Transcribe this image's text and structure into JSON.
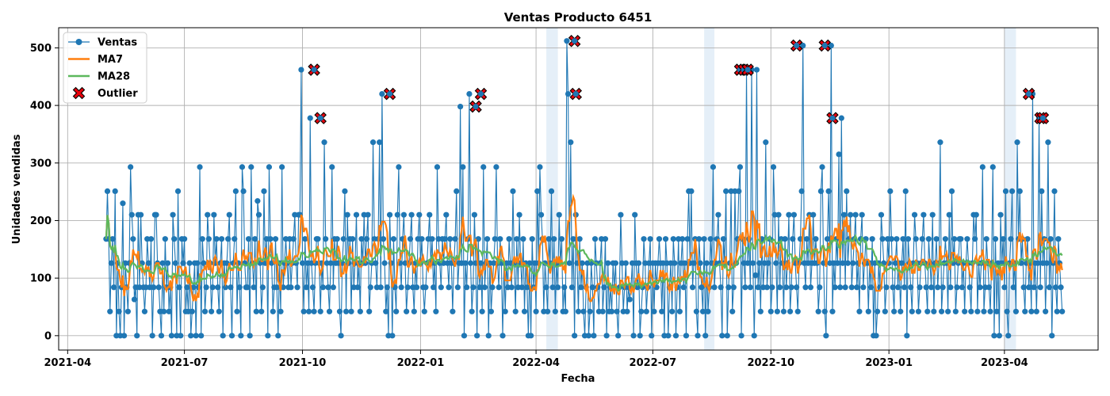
{
  "chart_data": {
    "type": "line",
    "title": "Ventas Producto 6451",
    "xlabel": "Fecha",
    "ylabel": "Unidades vendidas",
    "ylim": [
      -25,
      535
    ],
    "xlim": [
      "2021-03-25",
      "2023-06-13"
    ],
    "grid": true,
    "legend_position": "top-left",
    "x_ticks": [
      {
        "date": "2021-04-01",
        "label": "2021-04"
      },
      {
        "date": "2021-07-01",
        "label": "2021-07"
      },
      {
        "date": "2021-10-01",
        "label": "2021-10"
      },
      {
        "date": "2022-01-01",
        "label": "2022-01"
      },
      {
        "date": "2022-04-01",
        "label": "2022-04"
      },
      {
        "date": "2022-07-01",
        "label": "2022-07"
      },
      {
        "date": "2022-10-01",
        "label": "2022-10"
      },
      {
        "date": "2023-01-01",
        "label": "2023-01"
      },
      {
        "date": "2023-04-01",
        "label": "2023-04"
      }
    ],
    "y_ticks": [
      0,
      100,
      200,
      300,
      400,
      500
    ],
    "start_date": "2021-05-01",
    "highlight_periods": [
      [
        "2022-04-09",
        "2022-04-18"
      ],
      [
        "2022-08-10",
        "2022-08-18"
      ],
      [
        "2023-04-01",
        "2023-04-10"
      ]
    ],
    "legend": [
      {
        "name": "Ventas",
        "color": "#1f77b4",
        "style": "line-marker"
      },
      {
        "name": "MA7",
        "color": "#ff7f0e",
        "style": "line"
      },
      {
        "name": "MA28",
        "color": "#5cb85c",
        "style": "line"
      },
      {
        "name": "Outlier",
        "color": "#e8000b",
        "style": "x-marker"
      }
    ],
    "outliers": [
      {
        "date": "2021-10-10",
        "value": 462
      },
      {
        "date": "2021-10-15",
        "value": 378
      },
      {
        "date": "2021-12-08",
        "value": 420
      },
      {
        "date": "2022-02-13",
        "value": 398
      },
      {
        "date": "2022-02-17",
        "value": 420
      },
      {
        "date": "2022-05-01",
        "value": 512
      },
      {
        "date": "2022-05-02",
        "value": 420
      },
      {
        "date": "2022-09-07",
        "value": 462
      },
      {
        "date": "2022-09-10",
        "value": 462
      },
      {
        "date": "2022-09-13",
        "value": 462
      },
      {
        "date": "2022-10-21",
        "value": 504
      },
      {
        "date": "2022-11-12",
        "value": 504
      },
      {
        "date": "2022-11-18",
        "value": 378
      },
      {
        "date": "2023-04-20",
        "value": 420
      },
      {
        "date": "2023-04-29",
        "value": 378
      },
      {
        "date": "2023-05-01",
        "value": 378
      }
    ],
    "anchors": [
      [
        "2021-05-01",
        168
      ],
      [
        "2021-05-12",
        130
      ],
      [
        "2021-05-25",
        95
      ],
      [
        "2021-06-05",
        125
      ],
      [
        "2021-06-20",
        115
      ],
      [
        "2021-07-01",
        95
      ],
      [
        "2021-07-20",
        85
      ],
      [
        "2021-08-10",
        110
      ],
      [
        "2021-08-28",
        135
      ],
      [
        "2021-09-15",
        115
      ],
      [
        "2021-10-10",
        150
      ],
      [
        "2021-10-25",
        130
      ],
      [
        "2021-11-15",
        115
      ],
      [
        "2021-12-08",
        175
      ],
      [
        "2021-12-22",
        90
      ],
      [
        "2022-01-10",
        125
      ],
      [
        "2022-02-05",
        125
      ],
      [
        "2022-02-20",
        165
      ],
      [
        "2022-03-15",
        140
      ],
      [
        "2022-04-05",
        120
      ],
      [
        "2022-04-20",
        110
      ],
      [
        "2022-05-05",
        165
      ],
      [
        "2022-05-25",
        100
      ],
      [
        "2022-06-15",
        75
      ],
      [
        "2022-07-05",
        90
      ],
      [
        "2022-07-25",
        85
      ],
      [
        "2022-08-10",
        110
      ],
      [
        "2022-08-25",
        120
      ],
      [
        "2022-09-10",
        160
      ],
      [
        "2022-10-01",
        120
      ],
      [
        "2022-10-22",
        165
      ],
      [
        "2022-11-05",
        130
      ],
      [
        "2022-11-20",
        175
      ],
      [
        "2022-12-10",
        110
      ],
      [
        "2022-12-28",
        120
      ],
      [
        "2023-01-20",
        125
      ],
      [
        "2023-02-10",
        140
      ],
      [
        "2023-03-01",
        120
      ],
      [
        "2023-03-20",
        100
      ],
      [
        "2023-04-05",
        125
      ],
      [
        "2023-04-25",
        145
      ],
      [
        "2023-05-05",
        190
      ],
      [
        "2023-05-18",
        125
      ]
    ],
    "series": [
      {
        "name": "Ventas",
        "type": "line-marker",
        "color": "#1f77b4",
        "values": [
          168,
          251,
          168,
          42,
          126,
          168,
          84,
          251,
          0,
          126,
          42,
          0,
          84,
          230,
          0,
          126,
          84,
          42,
          126,
          293,
          210,
          168,
          63,
          84,
          0,
          210,
          84,
          210,
          126,
          84,
          42,
          84,
          168,
          126,
          84,
          168,
          0,
          84,
          210,
          210,
          126,
          84,
          42,
          0,
          126,
          42,
          168,
          84,
          126,
          42,
          84,
          0,
          210,
          168,
          126,
          0,
          251,
          84,
          0,
          168,
          126,
          168,
          42,
          84,
          42,
          126,
          0,
          42,
          84,
          126,
          0,
          126,
          84,
          293,
          0,
          168,
          126,
          42,
          84,
          210,
          168,
          126,
          42,
          84,
          210,
          126,
          168,
          84,
          42,
          126,
          168,
          0,
          126,
          84,
          126,
          168,
          210,
          84,
          0,
          126,
          168,
          251,
          42,
          126,
          84,
          0,
          293,
          251,
          126,
          84,
          84,
          168,
          0,
          293,
          126,
          84,
          168,
          42,
          234,
          210,
          126,
          42,
          84,
          251,
          126,
          168,
          0,
          293,
          168,
          126,
          42,
          84,
          168,
          84,
          0,
          126,
          42,
          293,
          84,
          126,
          168,
          126,
          84,
          168,
          84,
          126,
          168,
          210,
          126,
          84,
          210,
          210,
          462,
          126,
          42,
          168,
          84,
          126,
          42,
          378,
          126,
          84,
          42,
          126,
          168,
          168,
          126,
          42,
          126,
          84,
          336,
          168,
          126,
          84,
          42,
          126,
          293,
          84,
          168,
          126,
          168,
          126,
          42,
          0,
          126,
          168,
          251,
          42,
          210,
          126,
          168,
          42,
          168,
          84,
          126,
          210,
          84,
          126,
          42,
          168,
          126,
          210,
          126,
          168,
          210,
          42,
          84,
          126,
          336,
          168,
          126,
          84,
          168,
          336,
          84,
          420,
          168,
          126,
          42,
          84,
          0,
          210,
          126,
          0,
          168,
          84,
          42,
          210,
          293,
          126,
          84,
          168,
          210,
          126,
          42,
          84,
          126,
          168,
          210,
          84,
          42,
          126,
          84,
          168,
          210,
          126,
          168,
          84,
          42,
          84,
          126,
          168,
          210,
          126,
          168,
          84,
          126,
          42,
          293,
          168,
          126,
          84,
          168,
          126,
          168,
          210,
          126,
          84,
          168,
          126,
          42,
          126,
          168,
          251,
          84,
          126,
          398,
          126,
          293,
          0,
          126,
          84,
          168,
          420,
          126,
          42,
          84,
          210,
          126,
          0,
          168,
          84,
          126,
          42,
          293,
          84,
          126,
          168,
          0,
          126,
          42,
          84,
          126,
          168,
          293,
          126,
          84,
          168,
          126,
          0,
          126,
          42,
          126,
          84,
          168,
          126,
          84,
          251,
          126,
          42,
          168,
          84,
          210,
          126,
          84,
          168,
          42,
          126,
          84,
          0,
          126,
          0,
          168,
          84,
          126,
          42,
          251,
          126,
          293,
          210,
          168,
          42,
          126,
          84,
          42,
          168,
          126,
          251,
          84,
          168,
          42,
          126,
          84,
          210,
          126,
          168,
          42,
          84,
          42,
          512,
          420,
          126,
          336,
          84,
          168,
          0,
          210,
          126,
          42,
          168,
          84,
          126,
          42,
          0,
          84,
          126,
          0,
          42,
          126,
          84,
          0,
          168,
          126,
          84,
          42,
          126,
          168,
          42,
          84,
          168,
          0,
          126,
          42,
          84,
          42,
          126,
          84,
          126,
          42,
          0,
          84,
          210,
          126,
          42,
          84,
          126,
          42,
          84,
          63,
          84,
          126,
          0,
          210,
          126,
          84,
          126,
          0,
          42,
          84,
          168,
          126,
          42,
          84,
          126,
          168,
          0,
          126,
          42,
          126,
          84,
          126,
          168,
          126,
          42,
          126,
          0,
          168,
          126,
          0,
          84,
          126,
          42,
          168,
          126,
          0,
          84,
          168,
          42,
          126,
          168,
          84,
          126,
          0,
          168,
          251,
          126,
          251,
          84,
          126,
          168,
          42,
          0,
          168,
          126,
          84,
          42,
          168,
          0,
          126,
          42,
          84,
          168,
          126,
          293,
          84,
          126,
          168,
          210,
          126,
          84,
          0,
          168,
          126,
          251,
          0,
          84,
          126,
          251,
          42,
          84,
          251,
          126,
          168,
          251,
          293,
          0,
          168,
          126,
          84,
          462,
          126,
          168,
          84,
          462,
          126,
          0,
          105,
          462,
          84,
          126,
          42,
          168,
          84,
          126,
          336,
          84,
          126,
          168,
          42,
          84,
          293,
          210,
          126,
          42,
          210,
          84,
          168,
          126,
          42,
          168,
          84,
          126,
          210,
          42,
          84,
          168,
          210,
          126,
          84,
          42,
          126,
          168,
          251,
          504,
          126,
          84,
          168,
          126,
          210,
          84,
          126,
          210,
          126,
          168,
          126,
          42,
          84,
          251,
          293,
          126,
          42,
          0,
          168,
          251,
          126,
          504,
          42,
          126,
          84,
          168,
          126,
          315,
          84,
          378,
          126,
          210,
          84,
          251,
          126,
          168,
          210,
          84,
          126,
          168,
          210,
          84,
          126,
          42,
          168,
          210,
          84,
          126,
          168,
          126,
          42,
          126,
          84,
          168,
          0,
          126,
          0,
          42,
          126,
          84,
          210,
          168,
          126,
          42,
          84,
          168,
          126,
          251,
          168,
          84,
          42,
          126,
          168,
          84,
          126,
          42,
          126,
          168,
          84,
          251,
          0,
          168,
          126,
          84,
          42,
          126,
          210,
          168,
          126,
          42,
          84,
          126,
          168,
          210,
          126,
          84,
          42,
          168,
          126,
          84,
          210,
          42,
          126,
          168,
          84,
          126,
          336,
          42,
          84,
          126,
          168,
          126,
          42,
          210,
          84,
          251,
          126,
          168,
          42,
          84,
          126,
          168,
          168,
          84,
          126,
          42,
          126,
          168,
          126,
          84,
          42,
          126,
          210,
          168,
          210,
          42,
          126,
          84,
          126,
          293,
          42,
          84,
          168,
          126,
          84,
          42,
          126,
          293,
          0,
          168,
          42,
          126,
          0,
          210,
          126,
          168,
          84,
          251,
          42,
          0,
          126,
          168,
          251,
          84,
          126,
          42,
          336,
          168,
          251,
          126,
          168,
          84,
          42,
          126,
          168,
          84,
          126,
          42,
          420,
          84,
          126,
          42,
          126,
          378,
          84,
          251,
          126,
          168,
          42,
          126,
          336,
          84,
          168,
          0,
          126,
          251,
          84,
          42,
          168,
          126,
          84,
          42
        ]
      }
    ]
  }
}
